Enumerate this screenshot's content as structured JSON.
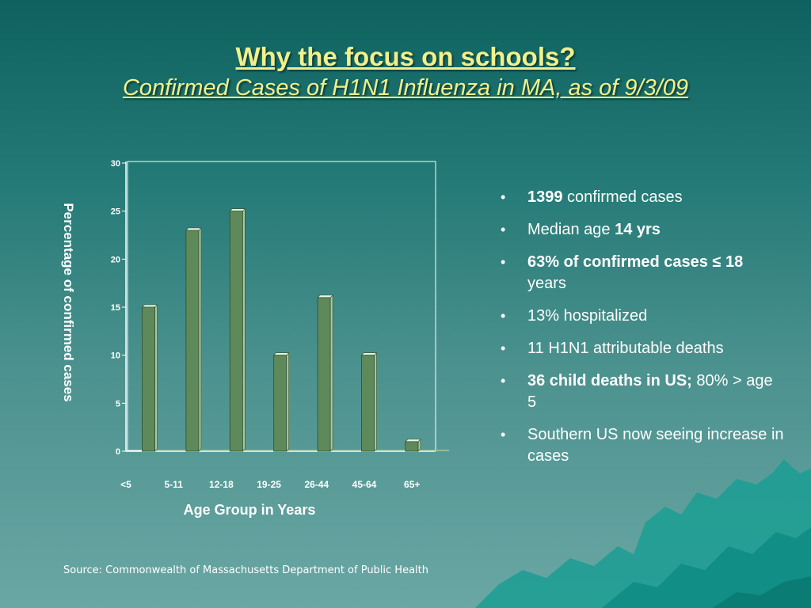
{
  "slide": {
    "title": "Why the focus on schools?",
    "subtitle": "Confirmed Cases of H1N1 Influenza in MA, as of 9/3/09",
    "source": "Source:  Commonwealth of Massachusetts Department of Public Health"
  },
  "bullets": [
    {
      "bold": "1399",
      "text": " confirmed cases"
    },
    {
      "text": "Median age ",
      "bold_after": "14 yrs"
    },
    {
      "bold": "63% of confirmed cases ≤ 18",
      "text": " years"
    },
    {
      "text": "13% hospitalized"
    },
    {
      "text": "11 H1N1 attributable deaths"
    },
    {
      "bold": "36 child deaths in US;",
      "text": " 80% > age 5"
    },
    {
      "text": "Southern US now seeing increase in cases"
    }
  ],
  "chart_data": {
    "type": "bar",
    "categories": [
      "<5",
      "5-11",
      "12-18",
      "19-25",
      "26-44",
      "45-64",
      "65+"
    ],
    "values": [
      15,
      23,
      25,
      10,
      16,
      10,
      1
    ],
    "xlabel": "Age Group in Years",
    "ylabel": "Percentage of confirmed cases",
    "ylim": [
      0,
      30
    ],
    "yticks": [
      0,
      5,
      10,
      15,
      20,
      25,
      30
    ],
    "grid": false,
    "colors": {
      "bar": "#5e8a5b",
      "bar_top": "#ebf3e6",
      "bar_side": "#a9c7a3",
      "axis_text": "#ffffff",
      "plot_border": "#ffffff"
    }
  }
}
